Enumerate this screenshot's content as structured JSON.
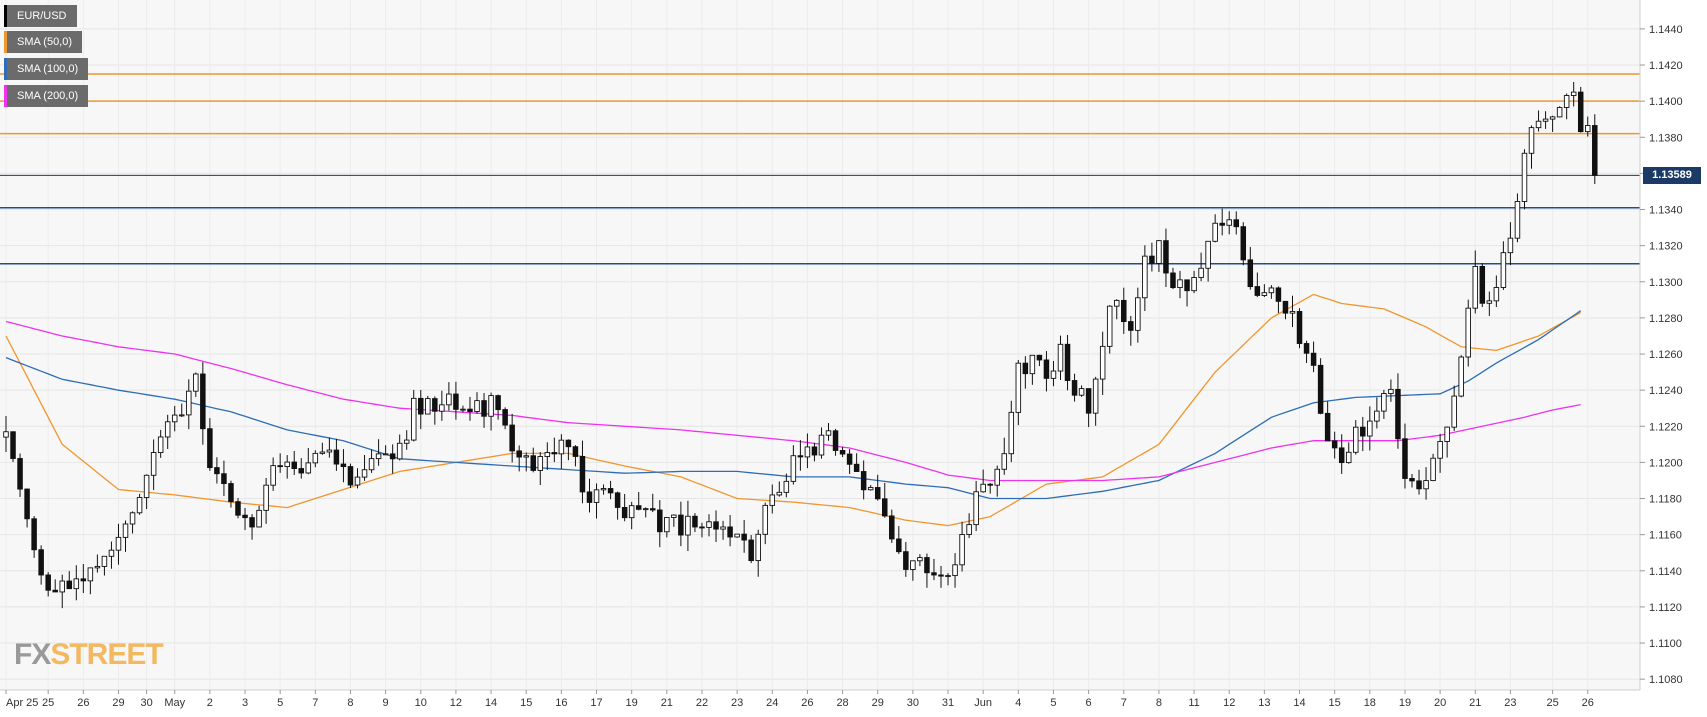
{
  "chart_data": {
    "type": "candlestick",
    "symbol": "EUR/USD",
    "ylim": [
      1.1074,
      1.1456
    ],
    "y_ticks": [
      "1.1080",
      "1.1100",
      "1.1120",
      "1.1140",
      "1.1160",
      "1.1180",
      "1.1200",
      "1.1220",
      "1.1240",
      "1.1260",
      "1.1280",
      "1.1300",
      "1.1320",
      "1.1340",
      "1.1360",
      "1.1380",
      "1.1400",
      "1.1420",
      "1.1440"
    ],
    "x_tick_labels": [
      "Apr 25",
      "25",
      "26",
      "29",
      "30",
      "May",
      "2",
      "3",
      "5",
      "7",
      "8",
      "9",
      "10",
      "12",
      "14",
      "15",
      "16",
      "17",
      "19",
      "21",
      "22",
      "23",
      "24",
      "26",
      "28",
      "29",
      "30",
      "31",
      "Jun",
      "4",
      "5",
      "6",
      "7",
      "8",
      "11",
      "12",
      "13",
      "14",
      "15",
      "18",
      "19",
      "20",
      "21",
      "23",
      "25",
      "26"
    ],
    "x_tick_index": [
      0,
      6,
      11,
      16,
      20,
      24,
      29,
      34,
      39,
      44,
      49,
      54,
      59,
      64,
      69,
      74,
      79,
      84,
      89,
      94,
      99,
      104,
      109,
      114,
      119,
      124,
      129,
      134,
      139,
      144,
      149,
      154,
      159,
      164,
      169,
      174,
      179,
      184,
      189,
      194,
      199,
      204,
      209,
      214,
      220,
      225
    ],
    "legend": [
      {
        "label": "EUR/USD",
        "color": "#000000"
      },
      {
        "label": "SMA (50,0)",
        "color": "#f0962e"
      },
      {
        "label": "SMA (100,0)",
        "color": "#2e6db5"
      },
      {
        "label": "SMA (200,0)",
        "color": "#ee33ee"
      }
    ],
    "last_price": "1.13589",
    "last_price_value": 1.13589,
    "horizontal_levels": [
      {
        "value": 1.1415,
        "color": "#f0962e"
      },
      {
        "value": 1.14,
        "color": "#f0962e"
      },
      {
        "value": 1.1382,
        "color": "#f0962e"
      },
      {
        "value": 1.1341,
        "color": "#1f4e8c"
      },
      {
        "value": 1.131,
        "color": "#1f4e8c"
      }
    ],
    "anchors": [
      [
        0,
        1.122
      ],
      [
        3,
        1.117
      ],
      [
        6,
        1.1125
      ],
      [
        11,
        1.114
      ],
      [
        16,
        1.116
      ],
      [
        20,
        1.1195
      ],
      [
        24,
        1.1225
      ],
      [
        27,
        1.1245
      ],
      [
        29,
        1.12
      ],
      [
        32,
        1.118
      ],
      [
        35,
        1.116
      ],
      [
        38,
        1.1195
      ],
      [
        42,
        1.12
      ],
      [
        46,
        1.121
      ],
      [
        49,
        1.1185
      ],
      [
        52,
        1.12
      ],
      [
        56,
        1.1205
      ],
      [
        58,
        1.123
      ],
      [
        60,
        1.1235
      ],
      [
        64,
        1.1232
      ],
      [
        68,
        1.123
      ],
      [
        70,
        1.1235
      ],
      [
        72,
        1.121
      ],
      [
        75,
        1.12
      ],
      [
        78,
        1.1205
      ],
      [
        80,
        1.121
      ],
      [
        82,
        1.1185
      ],
      [
        86,
        1.118
      ],
      [
        90,
        1.117
      ],
      [
        95,
        1.1165
      ],
      [
        100,
        1.1165
      ],
      [
        104,
        1.116
      ],
      [
        106,
        1.115
      ],
      [
        108,
        1.118
      ],
      [
        110,
        1.1185
      ],
      [
        113,
        1.1205
      ],
      [
        117,
        1.1215
      ],
      [
        120,
        1.1195
      ],
      [
        124,
        1.1185
      ],
      [
        126,
        1.116
      ],
      [
        128,
        1.1145
      ],
      [
        131,
        1.114
      ],
      [
        134,
        1.1135
      ],
      [
        136,
        1.1155
      ],
      [
        138,
        1.118
      ],
      [
        140,
        1.119
      ],
      [
        142,
        1.12
      ],
      [
        144,
        1.125
      ],
      [
        146,
        1.1255
      ],
      [
        148,
        1.125
      ],
      [
        150,
        1.1262
      ],
      [
        152,
        1.124
      ],
      [
        154,
        1.123
      ],
      [
        157,
        1.129
      ],
      [
        160,
        1.1275
      ],
      [
        162,
        1.131
      ],
      [
        164,
        1.132
      ],
      [
        166,
        1.13
      ],
      [
        168,
        1.1295
      ],
      [
        170,
        1.131
      ],
      [
        172,
        1.133
      ],
      [
        175,
        1.1335
      ],
      [
        177,
        1.13
      ],
      [
        180,
        1.1293
      ],
      [
        183,
        1.128
      ],
      [
        186,
        1.125
      ],
      [
        188,
        1.121
      ],
      [
        190,
        1.1205
      ],
      [
        192,
        1.1215
      ],
      [
        195,
        1.123
      ],
      [
        197,
        1.1235
      ],
      [
        199,
        1.1195
      ],
      [
        201,
        1.119
      ],
      [
        203,
        1.12
      ],
      [
        205,
        1.1215
      ],
      [
        207,
        1.126
      ],
      [
        209,
        1.131
      ],
      [
        210,
        1.129
      ],
      [
        212,
        1.13
      ],
      [
        214,
        1.1325
      ],
      [
        216,
        1.1375
      ],
      [
        218,
        1.1385
      ],
      [
        221,
        1.1395
      ],
      [
        223,
        1.1402
      ],
      [
        224,
        1.1385
      ],
      [
        225,
        1.1382
      ],
      [
        226,
        1.1359
      ]
    ],
    "sma50": [
      [
        0,
        1.127
      ],
      [
        8,
        1.121
      ],
      [
        16,
        1.1185
      ],
      [
        24,
        1.1182
      ],
      [
        32,
        1.1178
      ],
      [
        40,
        1.1175
      ],
      [
        48,
        1.1185
      ],
      [
        56,
        1.1195
      ],
      [
        64,
        1.12
      ],
      [
        72,
        1.1205
      ],
      [
        80,
        1.1205
      ],
      [
        88,
        1.1198
      ],
      [
        96,
        1.1192
      ],
      [
        104,
        1.118
      ],
      [
        112,
        1.1178
      ],
      [
        120,
        1.1175
      ],
      [
        128,
        1.1168
      ],
      [
        134,
        1.1165
      ],
      [
        140,
        1.117
      ],
      [
        148,
        1.1188
      ],
      [
        156,
        1.1192
      ],
      [
        164,
        1.121
      ],
      [
        172,
        1.125
      ],
      [
        180,
        1.128
      ],
      [
        186,
        1.1293
      ],
      [
        190,
        1.1288
      ],
      [
        196,
        1.1285
      ],
      [
        202,
        1.1275
      ],
      [
        207,
        1.1264
      ],
      [
        212,
        1.1262
      ],
      [
        218,
        1.127
      ],
      [
        224,
        1.1283
      ]
    ],
    "sma100": [
      [
        0,
        1.1258
      ],
      [
        8,
        1.1246
      ],
      [
        16,
        1.124
      ],
      [
        24,
        1.1235
      ],
      [
        32,
        1.1228
      ],
      [
        40,
        1.1218
      ],
      [
        48,
        1.1212
      ],
      [
        56,
        1.1202
      ],
      [
        64,
        1.12
      ],
      [
        72,
        1.1198
      ],
      [
        80,
        1.1196
      ],
      [
        88,
        1.1194
      ],
      [
        96,
        1.1195
      ],
      [
        104,
        1.1195
      ],
      [
        112,
        1.1192
      ],
      [
        120,
        1.1192
      ],
      [
        128,
        1.1188
      ],
      [
        134,
        1.1186
      ],
      [
        140,
        1.118
      ],
      [
        148,
        1.118
      ],
      [
        156,
        1.1184
      ],
      [
        164,
        1.119
      ],
      [
        172,
        1.1205
      ],
      [
        180,
        1.1225
      ],
      [
        186,
        1.1233
      ],
      [
        192,
        1.1236
      ],
      [
        198,
        1.1237
      ],
      [
        204,
        1.1238
      ],
      [
        208,
        1.1245
      ],
      [
        212,
        1.1255
      ],
      [
        218,
        1.1268
      ],
      [
        224,
        1.1284
      ]
    ],
    "sma200": [
      [
        0,
        1.1278
      ],
      [
        8,
        1.127
      ],
      [
        16,
        1.1264
      ],
      [
        24,
        1.126
      ],
      [
        32,
        1.1252
      ],
      [
        40,
        1.1243
      ],
      [
        48,
        1.1235
      ],
      [
        56,
        1.123
      ],
      [
        64,
        1.1228
      ],
      [
        72,
        1.1226
      ],
      [
        80,
        1.1222
      ],
      [
        88,
        1.122
      ],
      [
        96,
        1.1218
      ],
      [
        104,
        1.1215
      ],
      [
        112,
        1.1212
      ],
      [
        120,
        1.1208
      ],
      [
        128,
        1.12
      ],
      [
        134,
        1.1193
      ],
      [
        140,
        1.119
      ],
      [
        148,
        1.119
      ],
      [
        156,
        1.119
      ],
      [
        164,
        1.1192
      ],
      [
        172,
        1.12
      ],
      [
        180,
        1.1208
      ],
      [
        186,
        1.1212
      ],
      [
        192,
        1.1212
      ],
      [
        198,
        1.1212
      ],
      [
        204,
        1.1215
      ],
      [
        210,
        1.122
      ],
      [
        216,
        1.1225
      ],
      [
        220,
        1.1229
      ],
      [
        224,
        1.1232
      ]
    ],
    "grid": true
  },
  "watermark": {
    "left": "FX",
    "right": "STREET"
  }
}
